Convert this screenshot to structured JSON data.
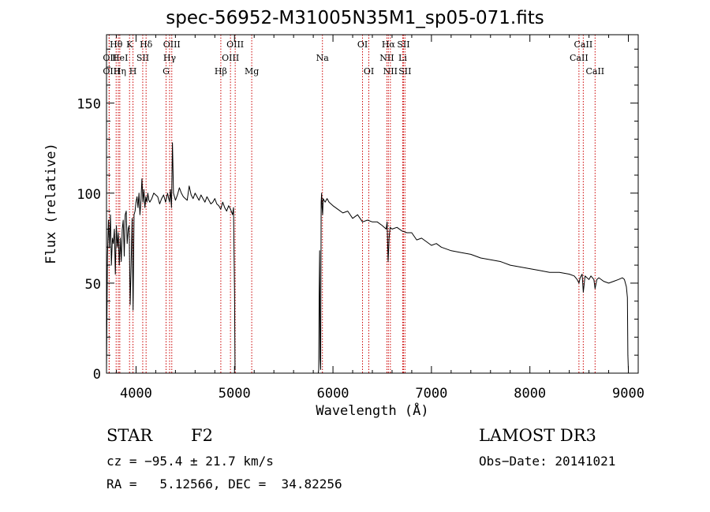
{
  "chart_data": {
    "type": "line",
    "title": "spec-56952-M31005N35M1_sp05-071.fits",
    "xlabel": "Wavelength (Å)",
    "ylabel": "Flux (relative)",
    "xlim": [
      3700,
      9100
    ],
    "ylim": [
      0,
      188
    ],
    "xticks": [
      4000,
      5000,
      6000,
      7000,
      8000,
      9000
    ],
    "yticks": [
      0,
      50,
      100,
      150
    ],
    "line_color": "#000000",
    "marker_color": "#cc0000",
    "segments": [
      {
        "name": "blue-arm",
        "x": [
          3700,
          3710,
          3720,
          3730,
          3740,
          3750,
          3760,
          3770,
          3780,
          3790,
          3800,
          3810,
          3820,
          3830,
          3840,
          3850,
          3860,
          3870,
          3880,
          3890,
          3900,
          3910,
          3920,
          3930,
          3940,
          3950,
          3960,
          3970,
          3980,
          3990,
          4000,
          4010,
          4020,
          4030,
          4040,
          4050,
          4060,
          4070,
          4080,
          4090,
          4100,
          4110,
          4120,
          4130,
          4140,
          4160,
          4180,
          4200,
          4220,
          4240,
          4260,
          4280,
          4300,
          4320,
          4340,
          4350,
          4360,
          4370,
          4380,
          4400,
          4420,
          4440,
          4460,
          4480,
          4500,
          4520,
          4540,
          4560,
          4580,
          4600,
          4620,
          4640,
          4660,
          4680,
          4700,
          4720,
          4740,
          4760,
          4780,
          4800,
          4820,
          4840,
          4860,
          4880,
          4900,
          4920,
          4940,
          4960,
          4980,
          4990,
          5000,
          5005
        ],
        "y": [
          2,
          65,
          85,
          70,
          88,
          60,
          75,
          72,
          80,
          55,
          82,
          70,
          78,
          60,
          75,
          62,
          80,
          85,
          65,
          88,
          90,
          72,
          80,
          82,
          38,
          60,
          86,
          35,
          88,
          90,
          95,
          98,
          92,
          100,
          88,
          96,
          108,
          95,
          102,
          92,
          98,
          95,
          100,
          96,
          95,
          97,
          100,
          99,
          98,
          94,
          97,
          99,
          95,
          100,
          95,
          102,
          92,
          128,
          100,
          96,
          99,
          103,
          100,
          98,
          97,
          96,
          104,
          99,
          97,
          100,
          98,
          96,
          99,
          97,
          95,
          98,
          96,
          94,
          95,
          97,
          94,
          93,
          91,
          95,
          92,
          90,
          93,
          91,
          88,
          92,
          45,
          2
        ]
      },
      {
        "name": "red-arm",
        "x": [
          5840,
          5850,
          5855,
          5860,
          5865,
          5870,
          5875,
          5880,
          5885,
          5890,
          5895,
          5900,
          5920,
          5940,
          5960,
          6000,
          6050,
          6100,
          6150,
          6200,
          6250,
          6300,
          6350,
          6400,
          6450,
          6500,
          6540,
          6550,
          6560,
          6570,
          6580,
          6600,
          6650,
          6700,
          6750,
          6800,
          6850,
          6900,
          6950,
          7000,
          7050,
          7100,
          7200,
          7300,
          7400,
          7500,
          7600,
          7700,
          7800,
          7900,
          8000,
          8100,
          8200,
          8300,
          8400,
          8450,
          8480,
          8498,
          8510,
          8530,
          8542,
          8560,
          8580,
          8600,
          8620,
          8650,
          8662,
          8680,
          8700,
          8750,
          8800,
          8850,
          8900,
          8940,
          8960,
          8980,
          8990,
          8995,
          9000
        ],
        "y": [
          0,
          0,
          2,
          45,
          68,
          8,
          2,
          95,
          100,
          92,
          88,
          97,
          95,
          97,
          95,
          93,
          91,
          89,
          90,
          86,
          88,
          84,
          85,
          84,
          84,
          82,
          80,
          84,
          62,
          75,
          81,
          80,
          81,
          79,
          78,
          78,
          74,
          75,
          73,
          71,
          72,
          70,
          68,
          67,
          66,
          64,
          63,
          62,
          60,
          59,
          58,
          57,
          56,
          56,
          55,
          54,
          52,
          50,
          53,
          55,
          45,
          54,
          53,
          52,
          54,
          52,
          47,
          52,
          53,
          51,
          50,
          51,
          52,
          53,
          52,
          48,
          42,
          10,
          2
        ]
      }
    ],
    "lines": [
      {
        "label": "OII",
        "x": 3727,
        "row": 2,
        "anchor": "start"
      },
      {
        "label": "OIII",
        "x": 3727,
        "row": 3,
        "anchor": "start"
      },
      {
        "label": "Hθ",
        "x": 3798,
        "row": 1,
        "anchor": "middle"
      },
      {
        "label": "HeI",
        "x": 3820,
        "row": 2,
        "anchor": "start"
      },
      {
        "label": "Hη",
        "x": 3835,
        "row": 3,
        "anchor": "middle"
      },
      {
        "label": "K",
        "x": 3934,
        "row": 1,
        "anchor": "middle"
      },
      {
        "label": "SII",
        "x": 4068,
        "row": 2,
        "anchor": "middle"
      },
      {
        "label": "H",
        "x": 3969,
        "row": 3,
        "anchor": "middle"
      },
      {
        "label": "Hδ",
        "x": 4102,
        "row": 1,
        "anchor": "middle"
      },
      {
        "label": "OIII",
        "x": 4363,
        "row": 1,
        "anchor": "middle"
      },
      {
        "label": "Hγ",
        "x": 4341,
        "row": 2,
        "anchor": "middle"
      },
      {
        "label": "G",
        "x": 4305,
        "row": 3,
        "anchor": "middle"
      },
      {
        "label": "Hβ",
        "x": 4861,
        "row": 3,
        "anchor": "middle"
      },
      {
        "label": "OIII",
        "x": 4959,
        "row": 2,
        "anchor": "middle"
      },
      {
        "label": "OIII",
        "x": 5007,
        "row": 1,
        "anchor": "middle"
      },
      {
        "label": "Mg",
        "x": 5175,
        "row": 3,
        "anchor": "middle"
      },
      {
        "label": "Na",
        "x": 5893,
        "row": 2,
        "anchor": "middle"
      },
      {
        "label": "OI",
        "x": 6300,
        "row": 1,
        "anchor": "middle"
      },
      {
        "label": "OI",
        "x": 6364,
        "row": 3,
        "anchor": "middle"
      },
      {
        "label": "NII",
        "x": 6548,
        "row": 2,
        "anchor": "middle"
      },
      {
        "label": "Hα",
        "x": 6563,
        "row": 1,
        "anchor": "middle"
      },
      {
        "label": "NII",
        "x": 6583,
        "row": 3,
        "anchor": "middle"
      },
      {
        "label": "Li",
        "x": 6708,
        "row": 2,
        "anchor": "middle"
      },
      {
        "label": "SII",
        "x": 6716,
        "row": 1,
        "anchor": "middle"
      },
      {
        "label": "SII",
        "x": 6731,
        "row": 3,
        "anchor": "middle"
      },
      {
        "label": "CaII",
        "x": 8498,
        "row": 2,
        "anchor": "middle"
      },
      {
        "label": "CaII",
        "x": 8542,
        "row": 1,
        "anchor": "middle"
      },
      {
        "label": "CaII",
        "x": 8662,
        "row": 3,
        "anchor": "middle"
      }
    ]
  },
  "info": {
    "object_class": "STAR",
    "subclass": "F2",
    "survey": "LAMOST DR3",
    "velocity": "cz = −95.4 ± 21.7 km/s",
    "obs_date": "Obs−Date: 20141021",
    "coords": "RA =   5.12566, DEC =  34.82256"
  }
}
